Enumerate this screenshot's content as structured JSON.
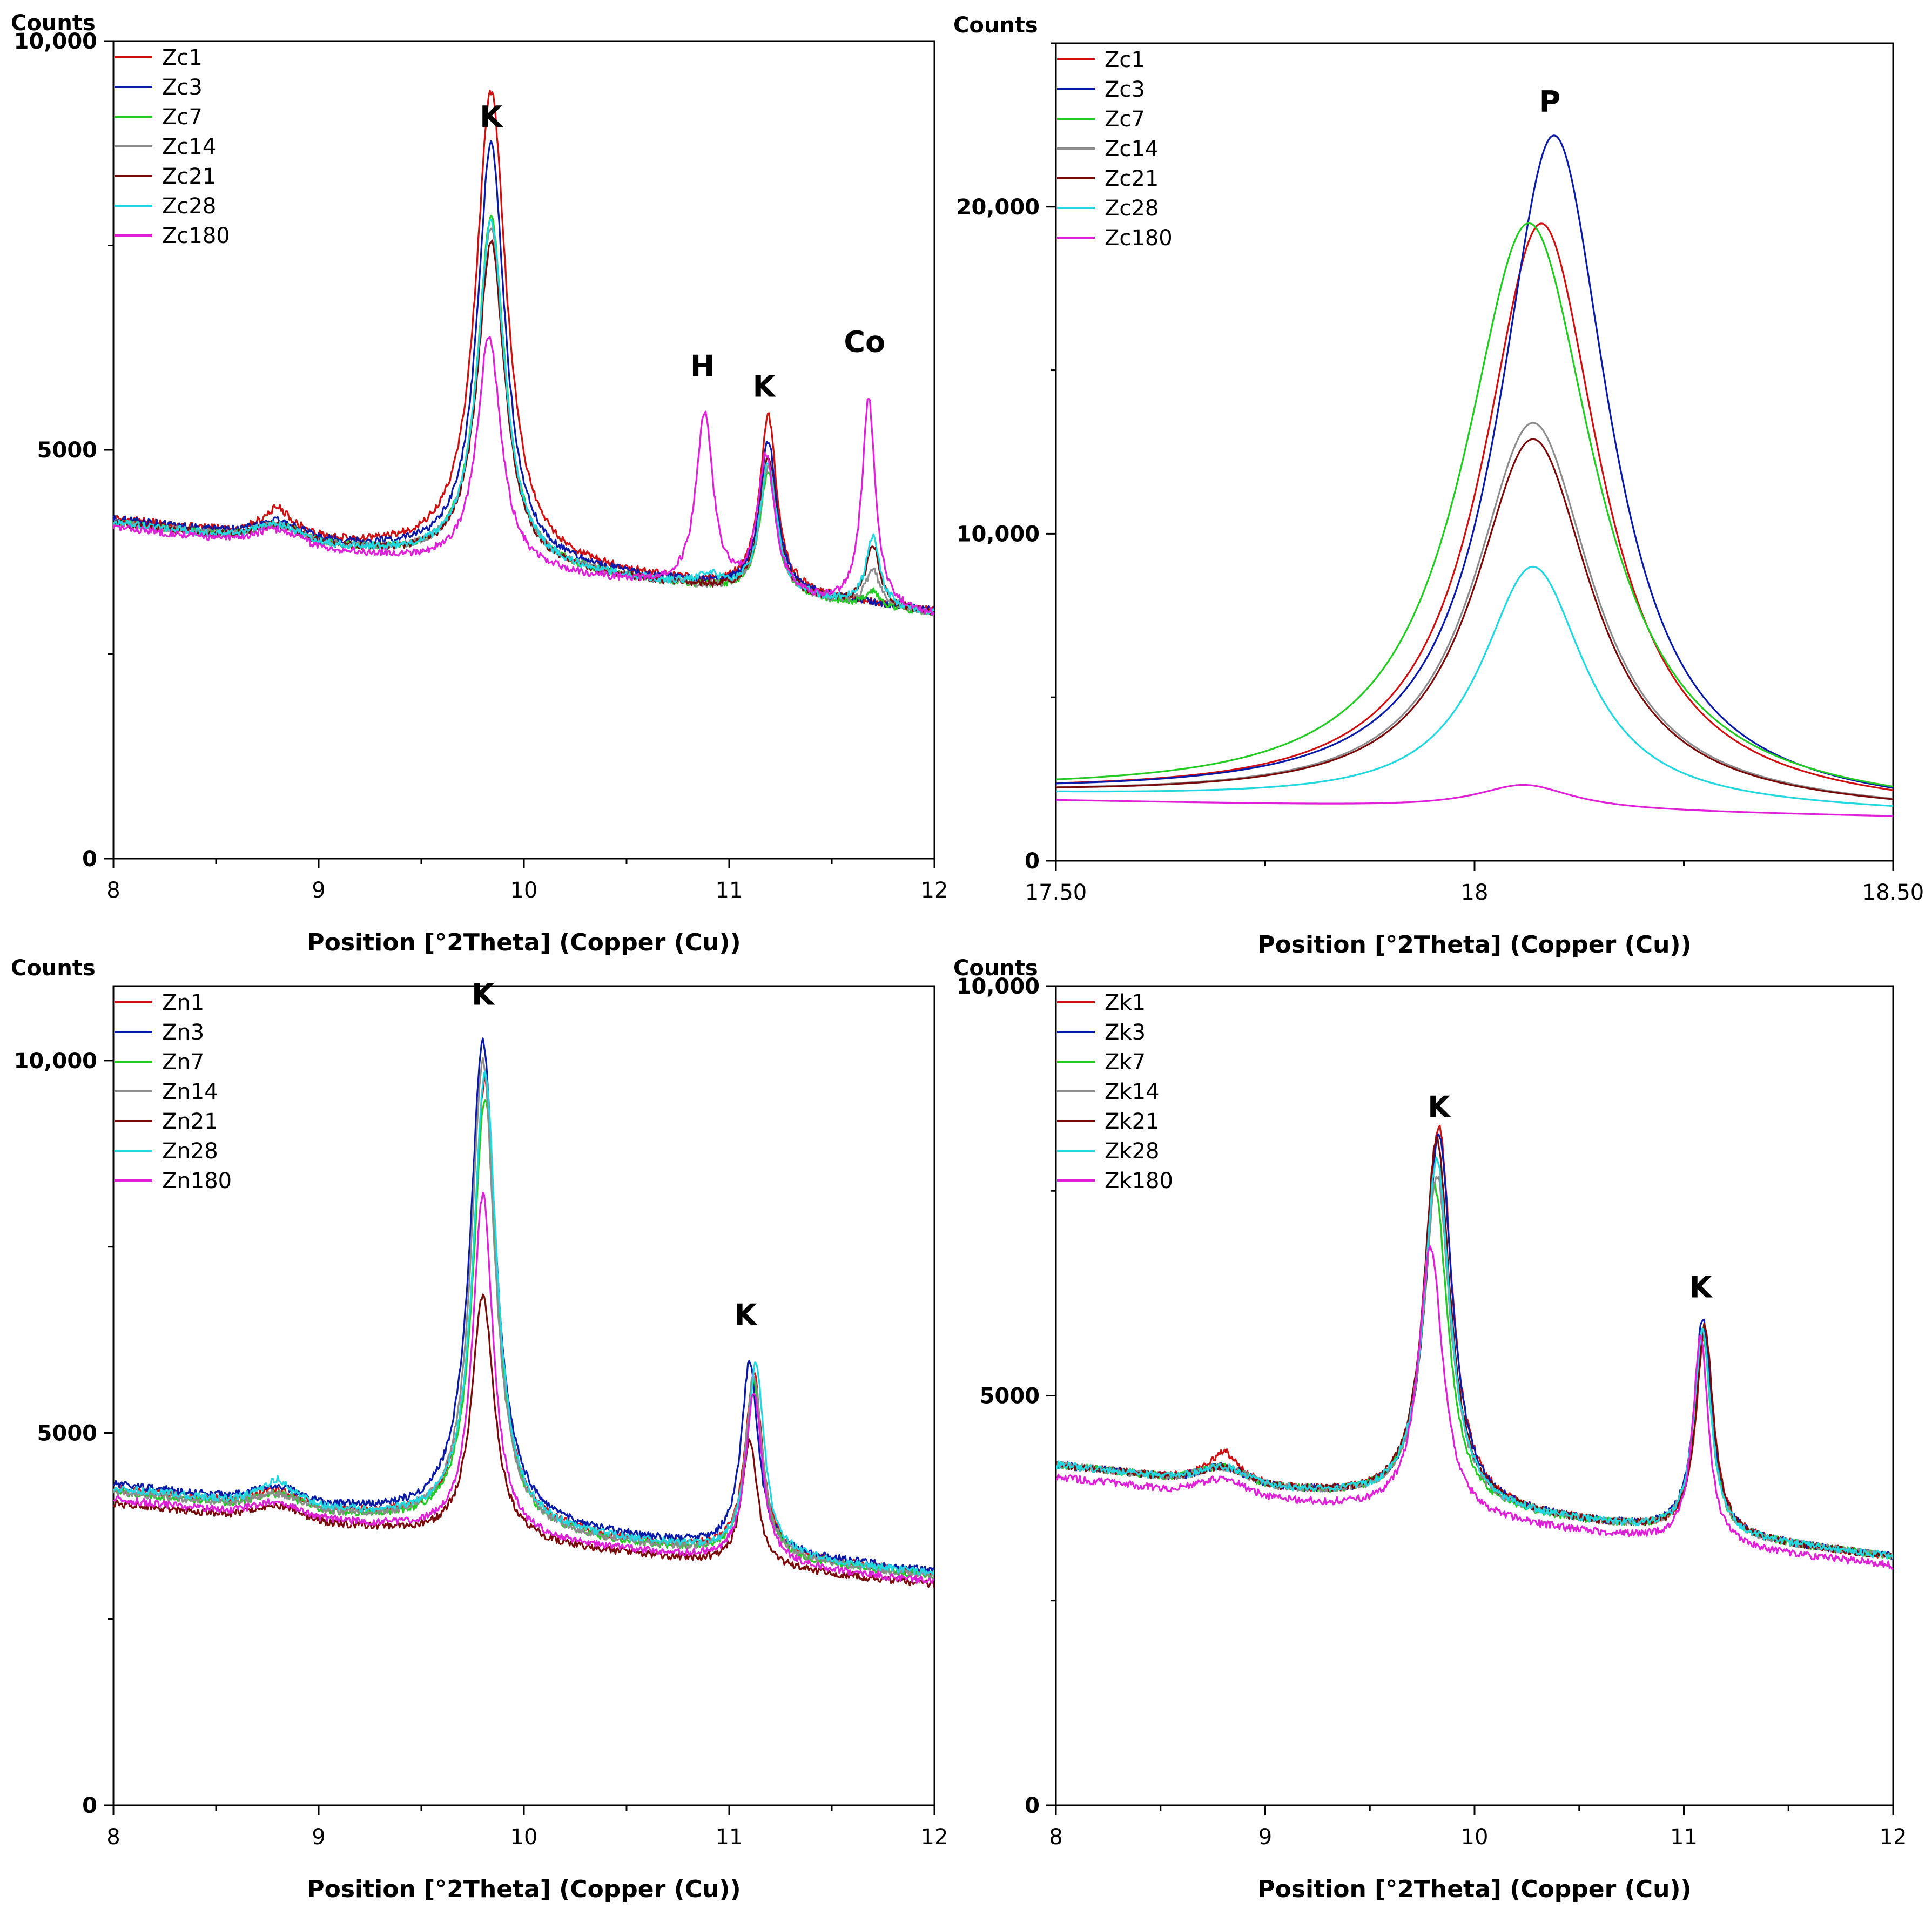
{
  "colors": {
    "s1": "#d01010",
    "s3": "#0a1aa8",
    "s7": "#22cc22",
    "s14": "#8c8c8c",
    "s21": "#7a0a0a",
    "s28": "#22d8e0",
    "s180": "#e020d8"
  },
  "chart_data": [
    {
      "type": "line",
      "title": "",
      "ylabel": "Counts",
      "xlabel": "Position [°2Theta] (Copper (Cu))",
      "xlim": [
        8,
        12
      ],
      "ylim": [
        0,
        10000
      ],
      "xticks": [
        8,
        9,
        10,
        11,
        12
      ],
      "xtick_labels": [
        "8",
        "9",
        "10",
        "11",
        "12"
      ],
      "yticks": [
        0,
        5000,
        10000
      ],
      "ytick_labels": [
        "0",
        "5000",
        "10,000"
      ],
      "legend_position": "top-left",
      "series": [
        {
          "name": "Zc1",
          "color_key": "s1",
          "base": 4150,
          "peaks": [
            [
              8.8,
              150,
              0.05
            ],
            [
              9.84,
              5750,
              0.09
            ],
            [
              11.19,
              2150,
              0.05
            ]
          ]
        },
        {
          "name": "Zc3",
          "color_key": "s3",
          "base": 4150,
          "peaks": [
            [
              9.84,
              5150,
              0.08
            ],
            [
              11.19,
              1850,
              0.05
            ]
          ]
        },
        {
          "name": "Zc7",
          "color_key": "s7",
          "base": 4100,
          "peaks": [
            [
              9.84,
              4250,
              0.08
            ],
            [
              11.19,
              1500,
              0.05
            ],
            [
              11.7,
              180,
              0.04
            ]
          ]
        },
        {
          "name": "Zc14",
          "color_key": "s14",
          "base": 4100,
          "peaks": [
            [
              9.84,
              4150,
              0.08
            ],
            [
              11.19,
              1550,
              0.05
            ],
            [
              11.7,
              450,
              0.04
            ]
          ]
        },
        {
          "name": "Zc21",
          "color_key": "s21",
          "base": 4100,
          "peaks": [
            [
              9.84,
              3950,
              0.08
            ],
            [
              11.19,
              1700,
              0.05
            ],
            [
              11.7,
              750,
              0.04
            ]
          ]
        },
        {
          "name": "Zc28",
          "color_key": "s28",
          "base": 4100,
          "peaks": [
            [
              9.84,
              4200,
              0.08
            ],
            [
              10.9,
              150,
              0.06
            ],
            [
              11.19,
              1600,
              0.05
            ],
            [
              11.7,
              850,
              0.04
            ]
          ]
        },
        {
          "name": "Zc180",
          "color_key": "s180",
          "base": 4050,
          "peaks": [
            [
              9.83,
              2850,
              0.07
            ],
            [
              10.88,
              2150,
              0.05
            ],
            [
              11.18,
              1700,
              0.05
            ],
            [
              11.68,
              2550,
              0.04
            ]
          ]
        }
      ],
      "annotations": [
        {
          "text": "K",
          "x": 9.84,
          "y": 8950
        },
        {
          "text": "H",
          "x": 10.87,
          "y": 5900
        },
        {
          "text": "K",
          "x": 11.17,
          "y": 5650
        },
        {
          "text": "Co",
          "x": 11.66,
          "y": 6200
        }
      ]
    },
    {
      "type": "line",
      "title": "",
      "ylabel": "Counts",
      "xlabel": "Position [°2Theta] (Copper (Cu))",
      "xlim": [
        17.5,
        18.5
      ],
      "ylim": [
        0,
        25000
      ],
      "xticks": [
        17.5,
        18,
        18.5
      ],
      "xtick_labels": [
        "17.50",
        "18",
        "18.50"
      ],
      "yticks": [
        0,
        10000,
        20000
      ],
      "ytick_labels": [
        "0",
        "10,000",
        "20,000"
      ],
      "legend_position": "top-left",
      "series": [
        {
          "name": "Zc1",
          "color_key": "s1",
          "base": 2000,
          "peaks": [
            [
              18.08,
              17800,
              0.085
            ]
          ]
        },
        {
          "name": "Zc3",
          "color_key": "s3",
          "base": 2000,
          "peaks": [
            [
              18.095,
              20500,
              0.08
            ]
          ]
        },
        {
          "name": "Zc7",
          "color_key": "s7",
          "base": 2000,
          "peaks": [
            [
              18.065,
              17800,
              0.095
            ]
          ]
        },
        {
          "name": "Zc14",
          "color_key": "s14",
          "base": 2000,
          "peaks": [
            [
              18.07,
              11700,
              0.085
            ]
          ]
        },
        {
          "name": "Zc21",
          "color_key": "s21",
          "base": 2000,
          "peaks": [
            [
              18.07,
              11200,
              0.085
            ]
          ]
        },
        {
          "name": "Zc28",
          "color_key": "s28",
          "base": 2000,
          "peaks": [
            [
              18.07,
              7300,
              0.075
            ]
          ]
        },
        {
          "name": "Zc180",
          "color_key": "s180",
          "base": 1850,
          "peaks": [
            [
              18.06,
              750,
              0.07
            ]
          ]
        }
      ],
      "annotations": [
        {
          "text": "P",
          "x": 18.09,
          "y": 22900
        }
      ]
    },
    {
      "type": "line",
      "title": "",
      "ylabel": "Counts",
      "xlabel": "Position [°2Theta] (Copper (Cu))",
      "xlim": [
        8,
        12
      ],
      "ylim": [
        0,
        11000
      ],
      "xticks": [
        8,
        9,
        10,
        11,
        12
      ],
      "xtick_labels": [
        "8",
        "9",
        "10",
        "11",
        "12"
      ],
      "yticks": [
        0,
        5000,
        10000
      ],
      "ytick_labels": [
        "0",
        "5000",
        "10,000"
      ],
      "legend_position": "top-left",
      "series": [
        {
          "name": "Zn1",
          "color_key": "s1",
          "base": 4250,
          "peaks": [
            [
              9.81,
              6000,
              0.07
            ],
            [
              11.12,
              2450,
              0.05
            ]
          ]
        },
        {
          "name": "Zn3",
          "color_key": "s3",
          "base": 4300,
          "peaks": [
            [
              9.8,
              6500,
              0.075
            ],
            [
              11.1,
              2550,
              0.05
            ]
          ]
        },
        {
          "name": "Zn7",
          "color_key": "s7",
          "base": 4200,
          "peaks": [
            [
              9.81,
              5800,
              0.07
            ],
            [
              11.12,
              2350,
              0.05
            ]
          ]
        },
        {
          "name": "Zn14",
          "color_key": "s14",
          "base": 4200,
          "peaks": [
            [
              9.8,
              6300,
              0.07
            ],
            [
              11.12,
              2450,
              0.05
            ]
          ]
        },
        {
          "name": "Zn21",
          "color_key": "s21",
          "base": 4050,
          "peaks": [
            [
              9.8,
              3300,
              0.065
            ],
            [
              11.1,
              1700,
              0.045
            ]
          ]
        },
        {
          "name": "Zn28",
          "color_key": "s28",
          "base": 4250,
          "peaks": [
            [
              8.8,
              150,
              0.05
            ],
            [
              9.81,
              6100,
              0.07
            ],
            [
              11.13,
              2550,
              0.05
            ]
          ]
        },
        {
          "name": "Zn180",
          "color_key": "s180",
          "base": 4100,
          "peaks": [
            [
              9.8,
              4600,
              0.06
            ],
            [
              11.12,
              2300,
              0.05
            ]
          ]
        }
      ],
      "annotations": [
        {
          "text": "K",
          "x": 9.8,
          "y": 10750
        },
        {
          "text": "K",
          "x": 11.08,
          "y": 6450
        }
      ]
    },
    {
      "type": "line",
      "title": "",
      "ylabel": "Counts",
      "xlabel": "Position [°2Theta] (Copper (Cu))",
      "xlim": [
        8,
        12
      ],
      "ylim": [
        0,
        10000
      ],
      "xticks": [
        8,
        9,
        10,
        11,
        12
      ],
      "xtick_labels": [
        "8",
        "9",
        "10",
        "11",
        "12"
      ],
      "yticks": [
        0,
        5000,
        10000
      ],
      "ytick_labels": [
        "0",
        "5000",
        "10,000"
      ],
      "legend_position": "top-left",
      "series": [
        {
          "name": "Zk1",
          "color_key": "s1",
          "base": 4150,
          "peaks": [
            [
              8.8,
              200,
              0.05
            ],
            [
              9.83,
              4650,
              0.075
            ],
            [
              11.1,
              2500,
              0.05
            ]
          ]
        },
        {
          "name": "Zk3",
          "color_key": "s3",
          "base": 4150,
          "peaks": [
            [
              9.83,
              4550,
              0.075
            ],
            [
              11.09,
              2650,
              0.05
            ]
          ]
        },
        {
          "name": "Zk7",
          "color_key": "s7",
          "base": 4150,
          "peaks": [
            [
              9.81,
              3900,
              0.075
            ],
            [
              11.09,
              2450,
              0.05
            ]
          ]
        },
        {
          "name": "Zk14",
          "color_key": "s14",
          "base": 4150,
          "peaks": [
            [
              9.82,
              4050,
              0.075
            ],
            [
              11.09,
              2500,
              0.05
            ]
          ]
        },
        {
          "name": "Zk21",
          "color_key": "s21",
          "base": 4150,
          "peaks": [
            [
              9.82,
              4500,
              0.075
            ],
            [
              11.1,
              2550,
              0.05
            ]
          ]
        },
        {
          "name": "Zk28",
          "color_key": "s28",
          "base": 4150,
          "peaks": [
            [
              9.82,
              4250,
              0.075
            ],
            [
              11.09,
              2500,
              0.05
            ]
          ]
        },
        {
          "name": "Zk180",
          "color_key": "s180",
          "base": 4000,
          "peaks": [
            [
              9.79,
              3300,
              0.07
            ],
            [
              11.08,
              2550,
              0.045
            ]
          ]
        }
      ],
      "annotations": [
        {
          "text": "K",
          "x": 9.83,
          "y": 8400
        },
        {
          "text": "K",
          "x": 11.08,
          "y": 6200
        }
      ]
    }
  ]
}
